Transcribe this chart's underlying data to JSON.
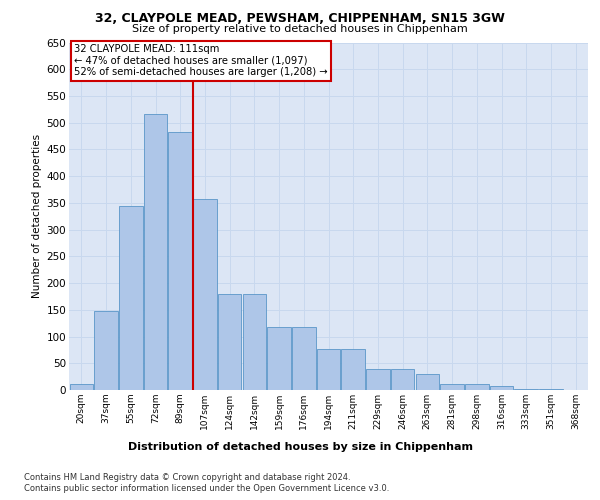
{
  "title_line1": "32, CLAYPOLE MEAD, PEWSHAM, CHIPPENHAM, SN15 3GW",
  "title_line2": "Size of property relative to detached houses in Chippenham",
  "xlabel": "Distribution of detached houses by size in Chippenham",
  "ylabel": "Number of detached properties",
  "categories": [
    "20sqm",
    "37sqm",
    "55sqm",
    "72sqm",
    "89sqm",
    "107sqm",
    "124sqm",
    "142sqm",
    "159sqm",
    "176sqm",
    "194sqm",
    "211sqm",
    "229sqm",
    "246sqm",
    "263sqm",
    "281sqm",
    "298sqm",
    "316sqm",
    "333sqm",
    "351sqm",
    "368sqm"
  ],
  "values": [
    12,
    148,
    345,
    517,
    483,
    358,
    179,
    179,
    117,
    117,
    76,
    76,
    40,
    40,
    29,
    12,
    12,
    7,
    2,
    1,
    0
  ],
  "bar_color": "#aec6e8",
  "bar_edge_color": "#5a96c8",
  "vline_x_index": 5,
  "vline_color": "#cc0000",
  "annotation_text": "32 CLAYPOLE MEAD: 111sqm\n← 47% of detached houses are smaller (1,097)\n52% of semi-detached houses are larger (1,208) →",
  "annotation_box_color": "#cc0000",
  "annotation_bg": "#ffffff",
  "ylim": [
    0,
    650
  ],
  "yticks": [
    0,
    50,
    100,
    150,
    200,
    250,
    300,
    350,
    400,
    450,
    500,
    550,
    600,
    650
  ],
  "grid_color": "#c8d8ee",
  "background_color": "#dce6f5",
  "footer_line1": "Contains HM Land Registry data © Crown copyright and database right 2024.",
  "footer_line2": "Contains public sector information licensed under the Open Government Licence v3.0."
}
